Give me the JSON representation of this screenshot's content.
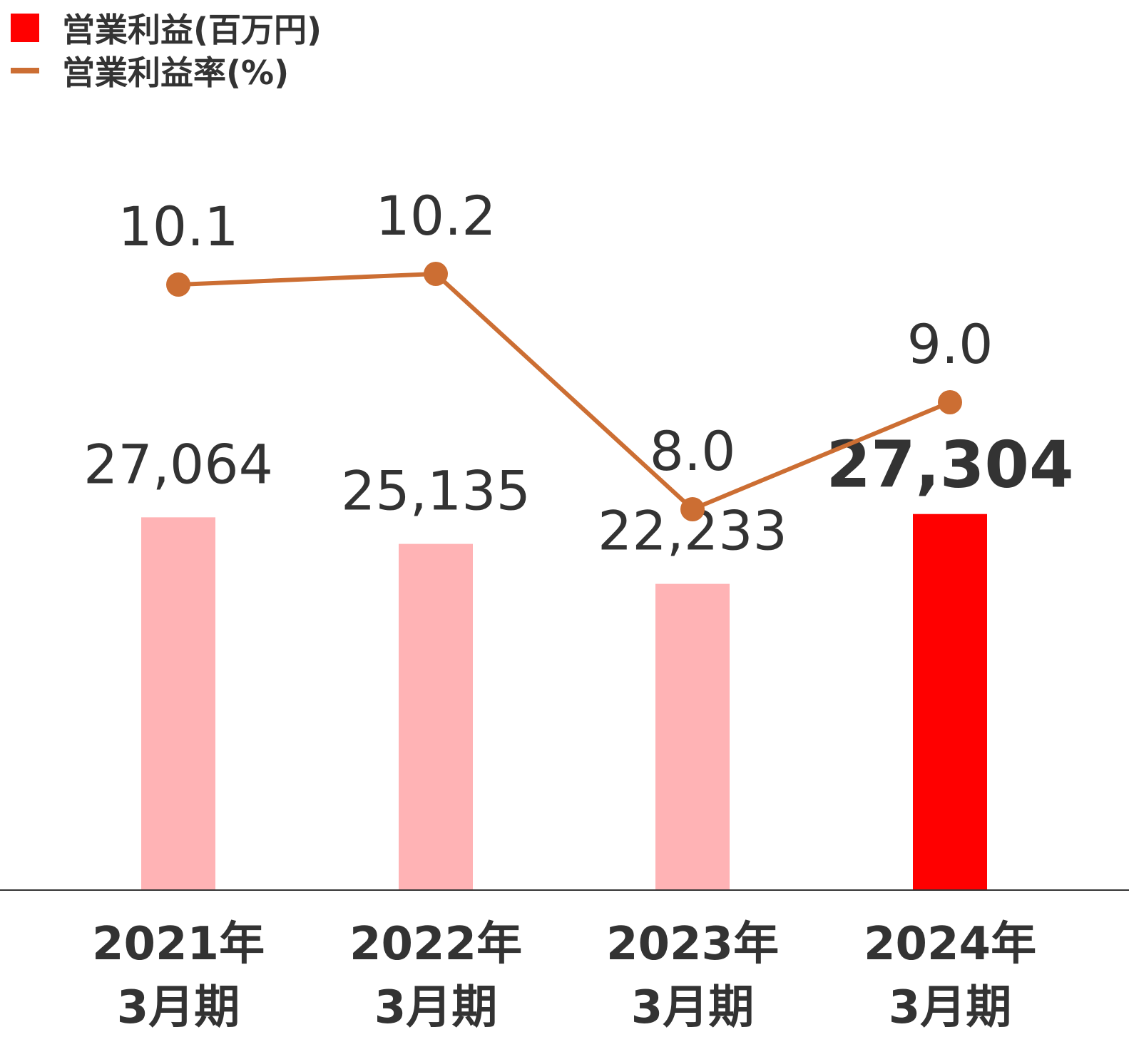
{
  "chart_data": {
    "type": "bar",
    "categories": [
      [
        "2021年",
        "3月期"
      ],
      [
        "2022年",
        "3月期"
      ],
      [
        "2023年",
        "3月期"
      ],
      [
        "2024年",
        "3月期"
      ]
    ],
    "series": [
      {
        "name": "営業利益(百万円)",
        "type": "bar",
        "values": [
          27064,
          25135,
          22233,
          27304
        ],
        "labels": [
          "27,064",
          "25,135",
          "22,233",
          "27,304"
        ]
      },
      {
        "name": "営業利益率(%)",
        "type": "line",
        "values": [
          10.1,
          10.2,
          8.0,
          9.0
        ],
        "labels": [
          "10.1",
          "10.2",
          "8.0",
          "9.0"
        ]
      }
    ],
    "highlight_index": 3,
    "legend_position": "top-left",
    "grid": false
  },
  "colors": {
    "bar": "#ffb3b5",
    "bar_highlight": "#ff0000",
    "line": "#cc6e33",
    "text": "#333333",
    "axis": "#333333"
  }
}
